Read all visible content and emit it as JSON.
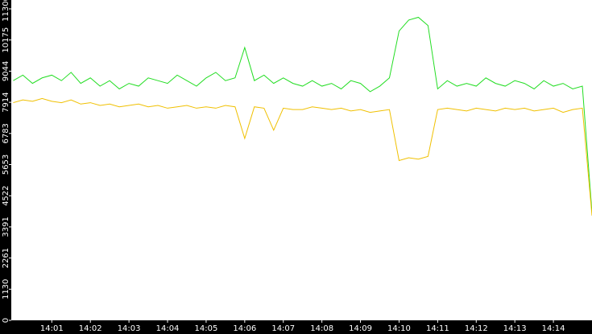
{
  "chart_data": {
    "type": "line",
    "x": [
      0,
      0.25,
      0.5,
      0.75,
      1,
      1.25,
      1.5,
      1.75,
      2,
      2.25,
      2.5,
      2.75,
      3,
      3.25,
      3.5,
      3.75,
      4,
      4.25,
      4.5,
      4.75,
      5,
      5.25,
      5.5,
      5.75,
      6,
      6.25,
      6.5,
      6.75,
      7,
      7.25,
      7.5,
      7.75,
      8,
      8.25,
      8.5,
      8.75,
      9,
      9.25,
      9.5,
      9.75,
      10,
      10.25,
      10.5,
      10.75,
      11,
      11.25,
      11.5,
      11.75,
      12,
      12.25,
      12.5,
      12.75,
      13,
      13.25,
      13.5,
      13.75,
      14,
      14.25,
      14.5,
      14.75,
      15
    ],
    "series": [
      {
        "color": "#22dd22",
        "values": [
          8700,
          8900,
          8600,
          8800,
          8900,
          8700,
          9000,
          8600,
          8800,
          8500,
          8700,
          8400,
          8600,
          8500,
          8800,
          8700,
          8600,
          8900,
          8700,
          8500,
          8800,
          9000,
          8700,
          8800,
          9900,
          8700,
          8900,
          8600,
          8800,
          8600,
          8500,
          8700,
          8500,
          8600,
          8400,
          8700,
          8600,
          8300,
          8500,
          8800,
          10500,
          10900,
          11000,
          10700,
          8400,
          8700,
          8500,
          8600,
          8500,
          8800,
          8600,
          8500,
          8700,
          8600,
          8400,
          8700,
          8500,
          8600,
          8400,
          8500,
          3900
        ]
      },
      {
        "color": "#f0c000",
        "values": [
          7900,
          8000,
          7950,
          8050,
          7950,
          7900,
          8000,
          7850,
          7900,
          7800,
          7850,
          7750,
          7800,
          7850,
          7750,
          7800,
          7700,
          7750,
          7800,
          7700,
          7750,
          7700,
          7800,
          7750,
          6600,
          7750,
          7700,
          6900,
          7700,
          7650,
          7650,
          7750,
          7700,
          7650,
          7700,
          7600,
          7650,
          7550,
          7600,
          7650,
          5800,
          5900,
          5850,
          5950,
          7650,
          7700,
          7650,
          7600,
          7700,
          7650,
          7600,
          7700,
          7650,
          7700,
          7600,
          7650,
          7700,
          7550,
          7650,
          7700,
          3800
        ]
      }
    ],
    "xlim": [
      -0.05,
      15
    ],
    "xticks": [
      {
        "value": 1,
        "label": "14:01"
      },
      {
        "value": 2,
        "label": "14:02"
      },
      {
        "value": 3,
        "label": "14:03"
      },
      {
        "value": 4,
        "label": "14:04"
      },
      {
        "value": 5,
        "label": "14:05"
      },
      {
        "value": 6,
        "label": "14:06"
      },
      {
        "value": 7,
        "label": "14:07"
      },
      {
        "value": 8,
        "label": "14:08"
      },
      {
        "value": 9,
        "label": "14:09"
      },
      {
        "value": 10,
        "label": "14:10"
      },
      {
        "value": 11,
        "label": "14:11"
      },
      {
        "value": 12,
        "label": "14:12"
      },
      {
        "value": 13,
        "label": "14:13"
      },
      {
        "value": 14,
        "label": "14:14"
      }
    ],
    "ylim": [
      0,
      11627
    ],
    "yticks": [
      0,
      1130,
      2261,
      3391,
      4522,
      5653,
      6783,
      7914,
      9044,
      10175,
      11306
    ]
  }
}
